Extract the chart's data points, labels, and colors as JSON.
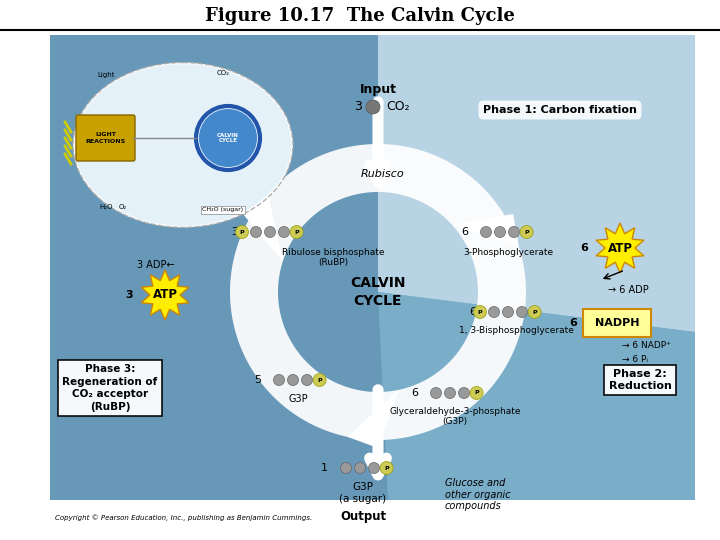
{
  "title": "Figure 10.17  The Calvin Cycle",
  "bg_outer": "#ffffff",
  "bg_main": "#8ab4cc",
  "copyright": "Copyright © Pearson Education, Inc., publishing as Benjamin Cummings.",
  "phase1_label": "Phase 1: Carbon fixation",
  "phase2_label": "Phase 2:\nReduction",
  "phase3_label": "Phase 3:\nRegeneration of\nCO₂ acceptor\n(RuBP)",
  "calvin_cycle_label": "CALVIN\nCYCLE",
  "rubisco_label": "Rubisco",
  "ribulose_label": "Ribulose bisphosphate\n(RuBP)",
  "phosphoglycerate_label": "3-Phosphoglycerate",
  "bisphosphoglycerate_label": "1, 3-Bisphosphoglycerate",
  "g3p_bottom_label": "Glyceraldehyde-3-phosphate\n(G3P)",
  "glucose_label": "Glucose and\nother organic\ncompounds",
  "output_label": "Output",
  "g3p_sugar_label": "G3P\n(a sugar)"
}
